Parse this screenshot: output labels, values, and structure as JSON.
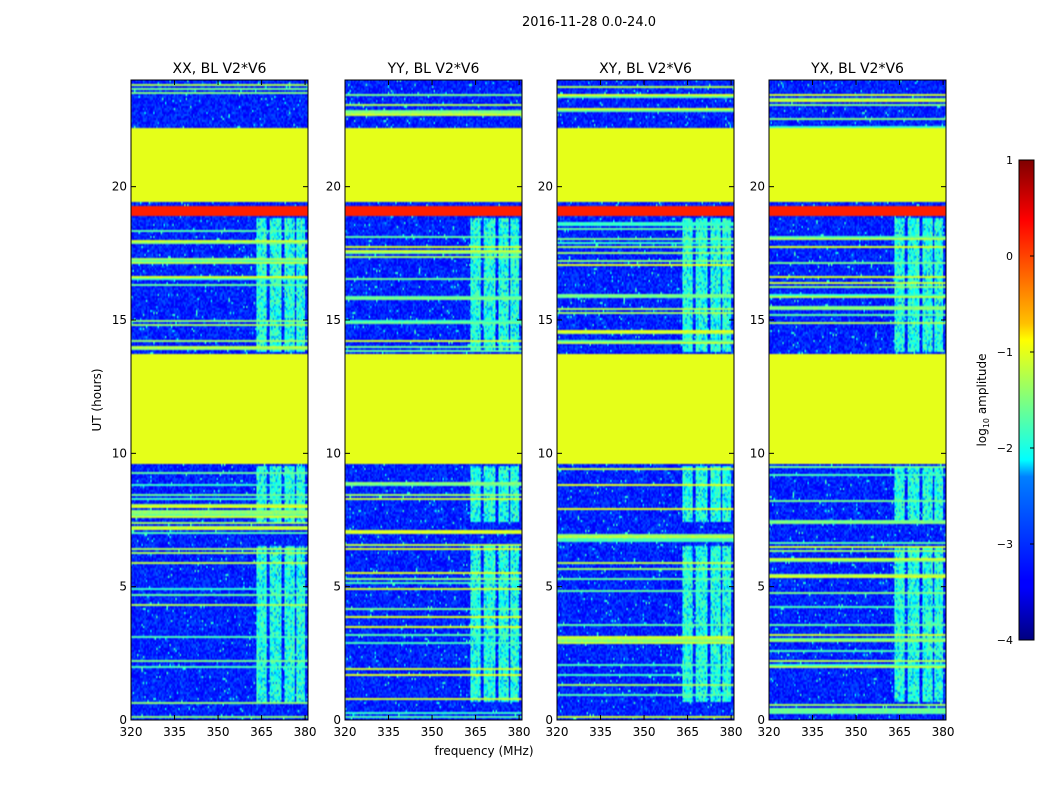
{
  "figure": {
    "suptitle": "2016-11-28 0.0-24.0"
  },
  "chart_data": {
    "type": "heatmap",
    "panels": [
      {
        "title": "XX, BL V2*V6"
      },
      {
        "title": "YY, BL V2*V6"
      },
      {
        "title": "XY, BL V2*V6"
      },
      {
        "title": "YX, BL V2*V6"
      }
    ],
    "xlabel": "frequency (MHz)",
    "ylabel": "UT (hours)",
    "xlim": [
      320,
      381
    ],
    "ylim": [
      0,
      24
    ],
    "xticks": [
      320,
      335,
      350,
      365,
      380
    ],
    "yticks": [
      0,
      5,
      10,
      15,
      20
    ],
    "colorbar": {
      "label": "log10 amplitude",
      "range": [
        -4,
        1
      ],
      "ticks": [
        -4,
        -3,
        -2,
        -1,
        0,
        1
      ],
      "tick_labels": [
        "−4",
        "−3",
        "−2",
        "−1",
        "0",
        "1"
      ],
      "colormap": "jet"
    },
    "flagged_blocks_log10": [
      {
        "t_start": 9.6,
        "t_end": 13.7,
        "value": -1.0
      },
      {
        "t_start": 19.4,
        "t_end": 22.2,
        "value": -1.0
      },
      {
        "t_start": 18.9,
        "t_end": 19.3,
        "value": 0.2
      }
    ],
    "rfi_freq_ranges_mhz": [
      [
        363,
        367
      ],
      [
        368,
        372
      ],
      [
        373,
        376.5
      ],
      [
        377,
        380
      ]
    ],
    "rfi_time_ranges_hours": [
      [
        0.7,
        4.9
      ],
      [
        4.9,
        6.5
      ],
      [
        7.4,
        9.5
      ],
      [
        13.8,
        18.8
      ]
    ],
    "background_log10": -3.1,
    "colors": {
      "flag_green": "#9cff5a",
      "flag_orange": "#ff6a00",
      "background_blue": "#0a2bff"
    }
  }
}
